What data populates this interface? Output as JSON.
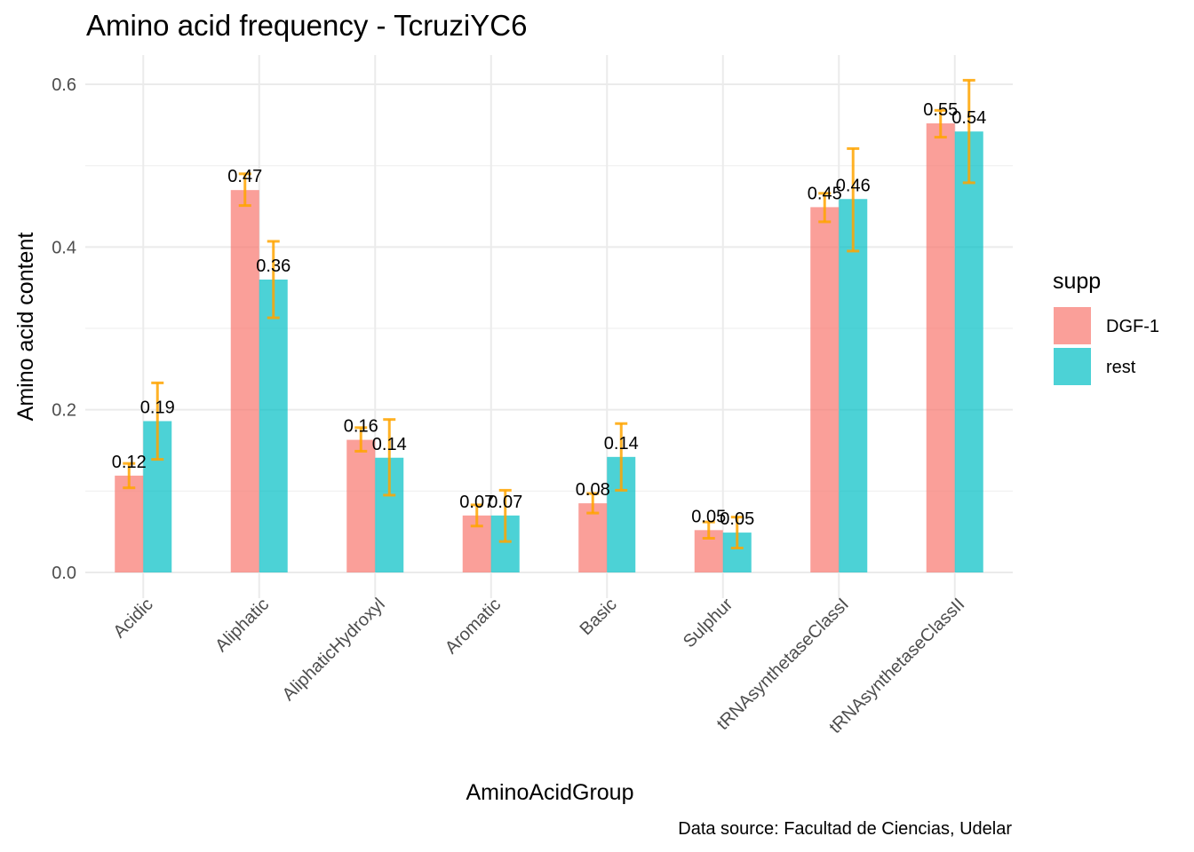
{
  "chart_data": {
    "type": "bar",
    "title": "Amino acid frequency - TcruziYC6",
    "xlabel": "AminoAcidGroup",
    "ylabel": "Amino acid content",
    "caption": "Data source: Facultad de Ciencias, Udelar",
    "categories": [
      "Acidic",
      "Aliphatic",
      "AliphaticHydroxyl",
      "Aromatic",
      "Basic",
      "Sulphur",
      "tRNAsynthetaseClassI",
      "tRNAsynthetaseClassII"
    ],
    "ylim": [
      -0.03,
      0.63
    ],
    "yticks": [
      0.0,
      0.2,
      0.4,
      0.6
    ],
    "ytick_labels": [
      "0.0",
      "0.2",
      "0.4",
      "0.6"
    ],
    "grid": true,
    "legend": {
      "title": "supp",
      "position": "right"
    },
    "error_color": "#FFA500",
    "series": [
      {
        "name": "DGF-1",
        "color": "#F8766D",
        "values": [
          0.119,
          0.47,
          0.163,
          0.07,
          0.085,
          0.052,
          0.449,
          0.552
        ],
        "err_low": [
          0.104,
          0.451,
          0.149,
          0.057,
          0.073,
          0.042,
          0.431,
          0.535
        ],
        "err_high": [
          0.134,
          0.49,
          0.178,
          0.083,
          0.097,
          0.062,
          0.466,
          0.568
        ],
        "labels": [
          "0.12",
          "0.47",
          "0.16",
          "0.07",
          "0.08",
          "0.05",
          "0.45",
          "0.55"
        ]
      },
      {
        "name": "rest",
        "color": "#00BFC4",
        "values": [
          0.186,
          0.36,
          0.141,
          0.07,
          0.142,
          0.049,
          0.459,
          0.542
        ],
        "err_low": [
          0.139,
          0.313,
          0.095,
          0.038,
          0.101,
          0.03,
          0.395,
          0.479
        ],
        "err_high": [
          0.233,
          0.407,
          0.188,
          0.101,
          0.183,
          0.068,
          0.521,
          0.605
        ],
        "labels": [
          "0.19",
          "0.36",
          "0.14",
          "0.07",
          "0.14",
          "0.05",
          "0.46",
          "0.54"
        ]
      }
    ]
  }
}
